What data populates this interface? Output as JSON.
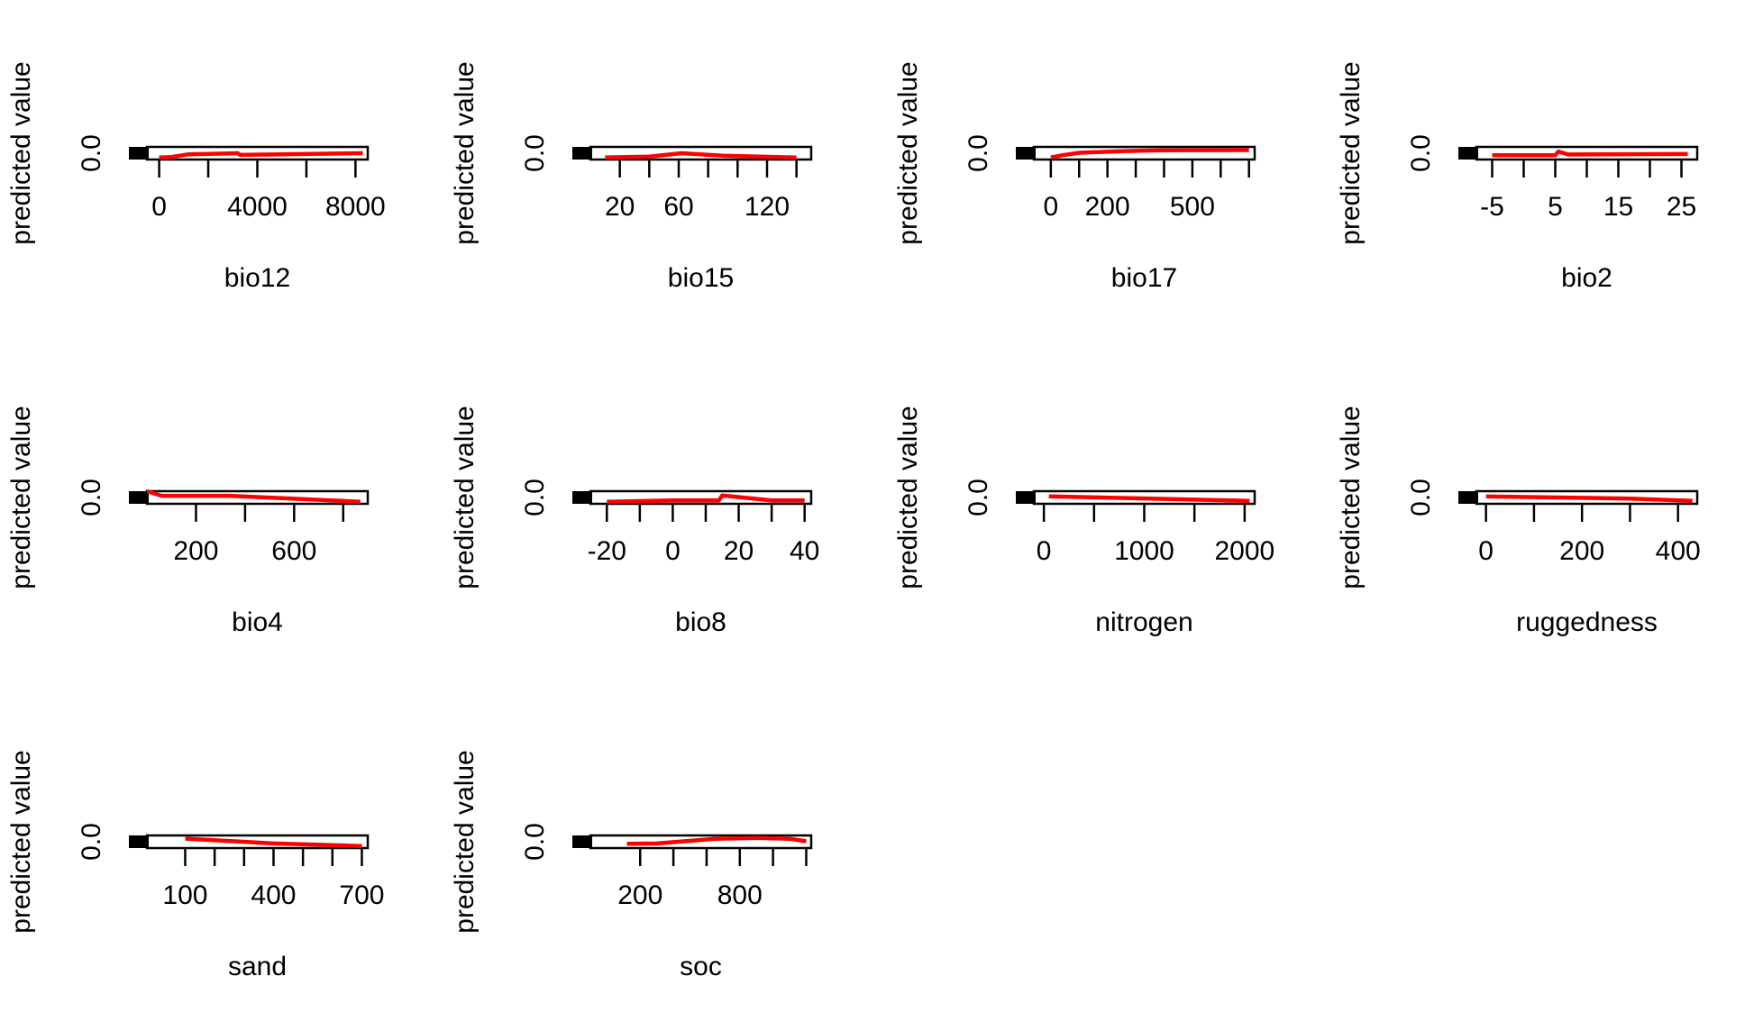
{
  "chart_data": [
    {
      "type": "line",
      "xlabel": "bio12",
      "ylabel": "predicted value",
      "xlim": [
        -500,
        8500
      ],
      "xticks": [
        0,
        2000,
        4000,
        6000,
        8000
      ],
      "xticklabels": [
        "0",
        "",
        "4000",
        "",
        "8000"
      ],
      "ylim": [
        -0.01,
        0.05
      ],
      "yticklabels": [
        "0.0"
      ],
      "x": [
        0,
        500,
        1200,
        3200,
        3300,
        8300
      ],
      "y": [
        0.0,
        0.002,
        0.015,
        0.02,
        0.012,
        0.02
      ],
      "line_color": "#ff0000"
    },
    {
      "type": "line",
      "xlabel": "bio15",
      "ylabel": "predicted value",
      "xlim": [
        0,
        150
      ],
      "xticks": [
        20,
        40,
        60,
        80,
        100,
        120,
        140
      ],
      "xticklabels": [
        "20",
        "",
        "60",
        "",
        "",
        "120",
        ""
      ],
      "ylim": [
        -0.01,
        0.05
      ],
      "yticklabels": [
        "0.0"
      ],
      "x": [
        10,
        40,
        62,
        90,
        140
      ],
      "y": [
        0.0,
        0.004,
        0.02,
        0.008,
        0.0
      ],
      "line_color": "#ff0000"
    },
    {
      "type": "line",
      "xlabel": "bio17",
      "ylabel": "predicted value",
      "xlim": [
        -60,
        720
      ],
      "xticks": [
        0,
        100,
        200,
        300,
        400,
        500,
        600,
        700
      ],
      "xticklabels": [
        "0",
        "",
        "200",
        "",
        "",
        "500",
        "",
        ""
      ],
      "ylim": [
        -0.01,
        0.05
      ],
      "yticklabels": [
        "0.0"
      ],
      "x": [
        0,
        40,
        100,
        250,
        400,
        700
      ],
      "y": [
        0.0,
        0.01,
        0.022,
        0.03,
        0.034,
        0.035
      ],
      "line_color": "#ff0000"
    },
    {
      "type": "line",
      "xlabel": "bio2",
      "ylabel": "predicted value",
      "xlim": [
        -7.5,
        27.5
      ],
      "xticks": [
        -5,
        0,
        5,
        10,
        15,
        20,
        25
      ],
      "xticklabels": [
        "-5",
        "",
        "5",
        "",
        "15",
        "",
        "25"
      ],
      "ylim": [
        -0.01,
        0.05
      ],
      "yticklabels": [
        "0.0"
      ],
      "x": [
        -5,
        5,
        5.5,
        7,
        26
      ],
      "y": [
        0.01,
        0.01,
        0.028,
        0.014,
        0.016
      ],
      "line_color": "#ff0000"
    },
    {
      "type": "line",
      "xlabel": "bio4",
      "ylabel": "predicted value",
      "xlim": [
        0,
        900
      ],
      "xticks": [
        200,
        400,
        600,
        800
      ],
      "xticklabels": [
        "200",
        "",
        "600",
        ""
      ],
      "ylim": [
        -0.01,
        0.05
      ],
      "yticklabels": [
        "0.0"
      ],
      "x": [
        0,
        60,
        330,
        870
      ],
      "y": [
        0.05,
        0.028,
        0.028,
        0.0
      ],
      "line_color": "#ff0000"
    },
    {
      "type": "line",
      "xlabel": "bio8",
      "ylabel": "predicted value",
      "xlim": [
        -25,
        42
      ],
      "xticks": [
        -20,
        -10,
        0,
        10,
        20,
        30,
        40
      ],
      "xticklabels": [
        "-20",
        "",
        "0",
        "",
        "20",
        "",
        "40"
      ],
      "ylim": [
        -0.01,
        0.05
      ],
      "yticklabels": [
        "0.0"
      ],
      "x": [
        -20,
        0,
        14,
        15,
        30,
        40
      ],
      "y": [
        0.0,
        0.006,
        0.006,
        0.03,
        0.006,
        0.006
      ],
      "line_color": "#ff0000"
    },
    {
      "type": "line",
      "xlabel": "nitrogen",
      "ylabel": "predicted value",
      "xlim": [
        -100,
        2100
      ],
      "xticks": [
        0,
        500,
        1000,
        1500,
        2000
      ],
      "xticklabels": [
        "0",
        "",
        "1000",
        "",
        "2000"
      ],
      "ylim": [
        -0.01,
        0.05
      ],
      "yticklabels": [
        "0.0"
      ],
      "x": [
        50,
        2050
      ],
      "y": [
        0.025,
        0.004
      ],
      "line_color": "#ff0000"
    },
    {
      "type": "line",
      "xlabel": "ruggedness",
      "ylabel": "predicted value",
      "xlim": [
        -20,
        440
      ],
      "xticks": [
        0,
        100,
        200,
        300,
        400
      ],
      "xticklabels": [
        "0",
        "",
        "200",
        "",
        "400"
      ],
      "ylim": [
        -0.01,
        0.05
      ],
      "yticklabels": [
        "0.0"
      ],
      "x": [
        0,
        300,
        430
      ],
      "y": [
        0.025,
        0.015,
        0.004
      ],
      "line_color": "#ff0000"
    },
    {
      "type": "line",
      "xlabel": "sand",
      "ylabel": "predicted value",
      "xlim": [
        -30,
        720
      ],
      "xticks": [
        100,
        200,
        300,
        400,
        500,
        600,
        700
      ],
      "xticklabels": [
        "100",
        "",
        "",
        "400",
        "",
        "",
        "700"
      ],
      "ylim": [
        -0.01,
        0.05
      ],
      "yticklabels": [
        "0.0"
      ],
      "x": [
        100,
        400,
        700
      ],
      "y": [
        0.035,
        0.012,
        0.0
      ],
      "line_color": "#ff0000"
    },
    {
      "type": "line",
      "xlabel": "soc",
      "ylabel": "predicted value",
      "xlim": [
        -100,
        1230
      ],
      "xticks": [
        200,
        400,
        600,
        800,
        1000,
        1200
      ],
      "xticklabels": [
        "200",
        "",
        "",
        "800",
        "",
        ""
      ],
      "ylim": [
        -0.01,
        0.05
      ],
      "yticklabels": [
        "0.0"
      ],
      "x": [
        120,
        300,
        650,
        900,
        1100,
        1200
      ],
      "y": [
        0.01,
        0.012,
        0.034,
        0.038,
        0.034,
        0.022
      ],
      "line_color": "#ff0000"
    }
  ]
}
